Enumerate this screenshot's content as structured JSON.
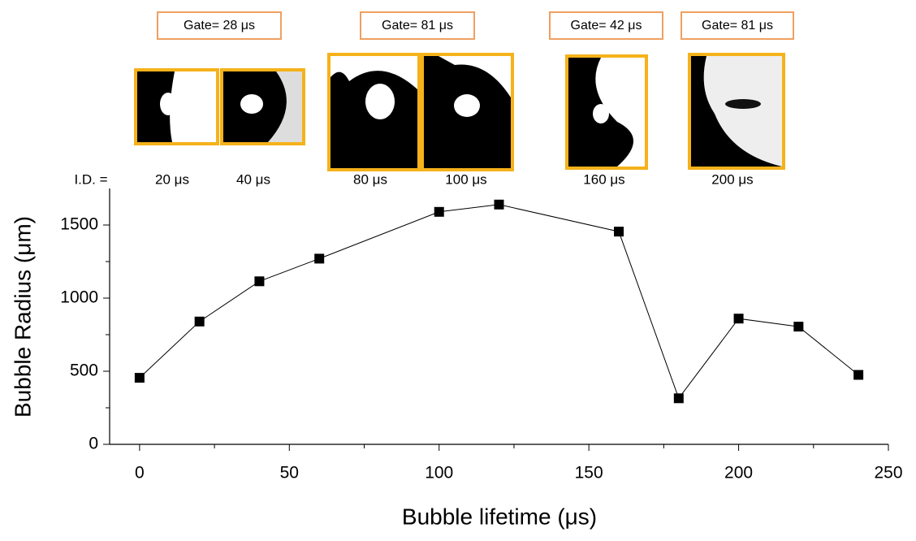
{
  "chart_data": {
    "type": "line",
    "xlabel": "Bubble lifetime (μs)",
    "ylabel": "Bubble Radius (μm)",
    "x": [
      0,
      20,
      40,
      60,
      100,
      120,
      160,
      180,
      200,
      220,
      240
    ],
    "values": [
      455,
      840,
      1115,
      1270,
      1590,
      1640,
      1455,
      315,
      860,
      805,
      475
    ],
    "color": "#000000",
    "xlim": [
      -10,
      250
    ],
    "ylim": [
      0,
      1750
    ],
    "xticks": [
      0,
      50,
      100,
      150,
      200,
      250
    ],
    "yticks": [
      0,
      500,
      1000,
      1500
    ],
    "xminorticks": [
      25,
      75,
      125,
      175,
      225
    ],
    "yminorticks": [
      250,
      750,
      1250
    ],
    "gate_labels": [
      "Gate= 28 μs",
      "Gate= 81 μs",
      "Gate= 42 μs",
      "Gate= 81 μs"
    ],
    "id_prefix": "I.D. =",
    "id_labels": [
      "20 μs",
      "40 μs",
      "80 μs",
      "100 μs",
      "160 μs",
      "200 μs"
    ]
  }
}
